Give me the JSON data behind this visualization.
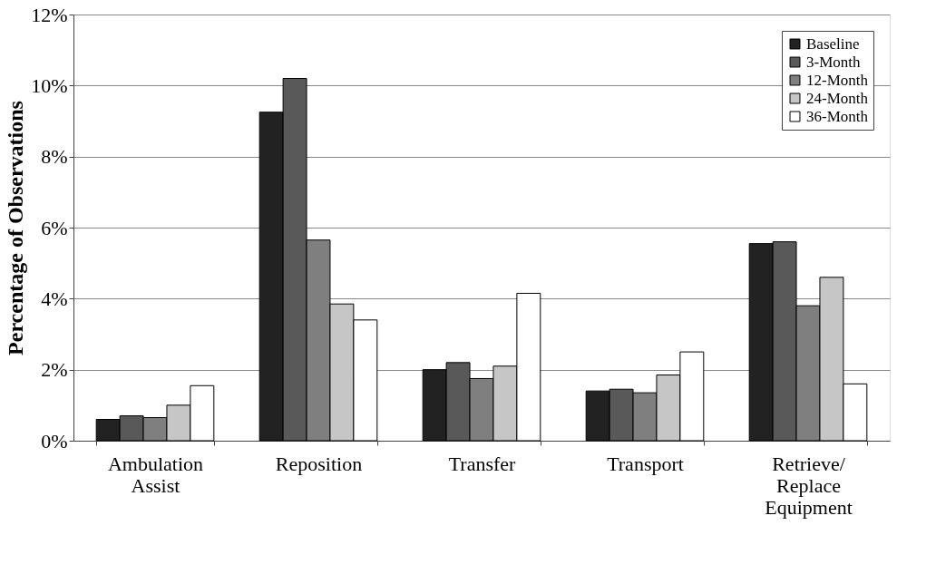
{
  "chart_data": {
    "type": "bar",
    "ylabel": "Percentage of Observations",
    "categories": [
      "Ambulation Assist",
      "Reposition",
      "Transfer",
      "Transport",
      "Retrieve/ Replace Equipment"
    ],
    "series": [
      {
        "name": "Baseline",
        "color": "#222222",
        "values": [
          0.6,
          9.25,
          2.0,
          1.4,
          5.55
        ]
      },
      {
        "name": "3-Month",
        "color": "#595959",
        "values": [
          0.7,
          10.2,
          2.2,
          1.45,
          5.6
        ]
      },
      {
        "name": "12-Month",
        "color": "#7f7f7f",
        "values": [
          0.65,
          5.65,
          1.75,
          1.35,
          3.8
        ]
      },
      {
        "name": "24-Month",
        "color": "#c6c6c6",
        "values": [
          1.0,
          3.85,
          2.1,
          1.85,
          4.6
        ]
      },
      {
        "name": "36-Month",
        "color": "#ffffff",
        "values": [
          1.55,
          3.4,
          4.15,
          2.5,
          1.6
        ]
      }
    ],
    "ylim": [
      0,
      12
    ],
    "yticks": [
      {
        "value": 0,
        "label": "0%"
      },
      {
        "value": 2,
        "label": "2%"
      },
      {
        "value": 4,
        "label": "4%"
      },
      {
        "value": 6,
        "label": "6%"
      },
      {
        "value": 8,
        "label": "8%"
      },
      {
        "value": 10,
        "label": "10%"
      },
      {
        "value": 12,
        "label": "12%"
      }
    ],
    "grid": "y",
    "legend": "top right"
  }
}
